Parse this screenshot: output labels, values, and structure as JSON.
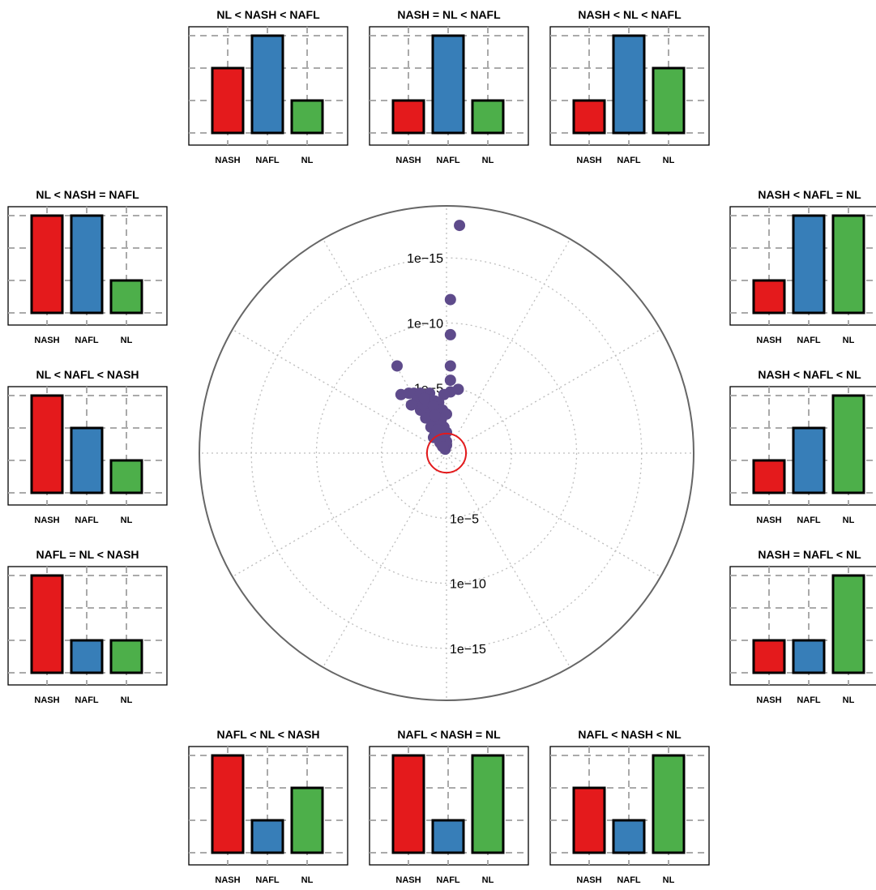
{
  "colors": {
    "NASH": "#e41a1c",
    "NAFL": "#377eb8",
    "NL": "#4daf4a",
    "point": "#5e4b8b",
    "center_circle": "#e31a1c",
    "grid": "#bdbdbd",
    "outer_circle": "#666666"
  },
  "chart_data": [
    {
      "type": "scatter",
      "projection": "polar",
      "description_of_axes": "radial distance = -log10(p), angle = direction toward ordering pattern",
      "radial_tick_labels_upper": [
        "1e−5",
        "1e−10",
        "1e−15"
      ],
      "radial_tick_labels_lower": [
        "1e−5",
        "1e−10",
        "1e−15"
      ],
      "radial_ticks": [
        5,
        10,
        15
      ],
      "rlim": [
        0,
        19
      ],
      "significance_circle_radius": 1.5,
      "angular_divisions": 12,
      "points": [
        {
          "x": 1.0,
          "y": 17.5
        },
        {
          "x": 0.3,
          "y": 11.8
        },
        {
          "x": 0.3,
          "y": 9.1
        },
        {
          "x": 0.3,
          "y": 6.7
        },
        {
          "x": 0.3,
          "y": 5.6
        },
        {
          "x": 0.9,
          "y": 4.9
        },
        {
          "x": 0.3,
          "y": 4.7
        },
        {
          "x": -0.2,
          "y": 4.5
        },
        {
          "x": -1.3,
          "y": 4.6
        },
        {
          "x": -1.2,
          "y": 4.1
        },
        {
          "x": -0.9,
          "y": 4.0
        },
        {
          "x": -0.6,
          "y": 3.9
        },
        {
          "x": -1.5,
          "y": 3.6
        },
        {
          "x": -0.8,
          "y": 3.4
        },
        {
          "x": -1.4,
          "y": 3.2
        },
        {
          "x": -0.3,
          "y": 3.3
        },
        {
          "x": 0.0,
          "y": 3.0
        },
        {
          "x": -0.4,
          "y": 2.6
        },
        {
          "x": -1.1,
          "y": 2.3
        },
        {
          "x": -0.7,
          "y": 2.1
        },
        {
          "x": -0.2,
          "y": 2.0
        },
        {
          "x": 0.0,
          "y": 1.6
        },
        {
          "x": -0.9,
          "y": 1.4
        },
        {
          "x": -0.5,
          "y": 1.3
        },
        {
          "x": -0.3,
          "y": 1.1
        },
        {
          "x": -0.2,
          "y": 0.6
        },
        {
          "x": -0.1,
          "y": 0.3
        },
        {
          "x": 0.0,
          "y": 0.9
        },
        {
          "x": -0.1,
          "y": 0.8
        },
        {
          "x": 0.0,
          "y": 0.6
        },
        {
          "x": -3.8,
          "y": 6.7
        },
        {
          "x": -3.5,
          "y": 4.5
        },
        {
          "x": -2.9,
          "y": 4.6
        },
        {
          "x": -2.5,
          "y": 4.6
        },
        {
          "x": -2.0,
          "y": 4.6
        },
        {
          "x": -2.3,
          "y": 4.0
        },
        {
          "x": -2.0,
          "y": 3.3
        },
        {
          "x": -1.8,
          "y": 3.7
        },
        {
          "x": -2.7,
          "y": 3.7
        },
        {
          "x": -1.6,
          "y": 2.7
        },
        {
          "x": -1.0,
          "y": 3.6
        },
        {
          "x": -1.7,
          "y": 4.2
        },
        {
          "x": -0.6,
          "y": 2.1
        },
        {
          "x": -0.9,
          "y": 2.9
        },
        {
          "x": -1.2,
          "y": 2.0
        },
        {
          "x": -1.0,
          "y": 1.2
        },
        {
          "x": -0.4,
          "y": 1.7
        },
        {
          "x": -0.5,
          "y": 0.8
        },
        {
          "x": -0.3,
          "y": 0.5
        },
        {
          "x": -0.7,
          "y": 1.8
        }
      ]
    },
    {
      "type": "bar",
      "title": "NL < NASH < NAFL",
      "categories": [
        "NASH",
        "NAFL",
        "NL"
      ],
      "values": [
        2,
        3,
        1
      ],
      "ylim": [
        0,
        3
      ],
      "position": "top"
    },
    {
      "type": "bar",
      "title": "NASH = NL < NAFL",
      "categories": [
        "NASH",
        "NAFL",
        "NL"
      ],
      "values": [
        1,
        3,
        1
      ],
      "ylim": [
        0,
        3
      ],
      "position": "top"
    },
    {
      "type": "bar",
      "title": "NASH < NL < NAFL",
      "categories": [
        "NASH",
        "NAFL",
        "NL"
      ],
      "values": [
        1,
        3,
        2
      ],
      "ylim": [
        0,
        3
      ],
      "position": "top"
    },
    {
      "type": "bar",
      "title": "NL < NASH = NAFL",
      "categories": [
        "NASH",
        "NAFL",
        "NL"
      ],
      "values": [
        3,
        3,
        1
      ],
      "ylim": [
        0,
        3
      ],
      "position": "left"
    },
    {
      "type": "bar",
      "title": "NL < NAFL < NASH",
      "categories": [
        "NASH",
        "NAFL",
        "NL"
      ],
      "values": [
        3,
        2,
        1
      ],
      "ylim": [
        0,
        3
      ],
      "position": "left"
    },
    {
      "type": "bar",
      "title": "NAFL = NL < NASH",
      "categories": [
        "NASH",
        "NAFL",
        "NL"
      ],
      "values": [
        3,
        1,
        1
      ],
      "ylim": [
        0,
        3
      ],
      "position": "left"
    },
    {
      "type": "bar",
      "title": "NASH < NAFL = NL",
      "categories": [
        "NASH",
        "NAFL",
        "NL"
      ],
      "values": [
        1,
        3,
        3
      ],
      "ylim": [
        0,
        3
      ],
      "position": "right"
    },
    {
      "type": "bar",
      "title": "NASH < NAFL < NL",
      "categories": [
        "NASH",
        "NAFL",
        "NL"
      ],
      "values": [
        1,
        2,
        3
      ],
      "ylim": [
        0,
        3
      ],
      "position": "right"
    },
    {
      "type": "bar",
      "title": "NASH = NAFL < NL",
      "categories": [
        "NASH",
        "NAFL",
        "NL"
      ],
      "values": [
        1,
        1,
        3
      ],
      "ylim": [
        0,
        3
      ],
      "position": "right"
    },
    {
      "type": "bar",
      "title": "NAFL < NL < NASH",
      "categories": [
        "NASH",
        "NAFL",
        "NL"
      ],
      "values": [
        3,
        1,
        2
      ],
      "ylim": [
        0,
        3
      ],
      "position": "bottom"
    },
    {
      "type": "bar",
      "title": "NAFL < NASH = NL",
      "categories": [
        "NASH",
        "NAFL",
        "NL"
      ],
      "values": [
        3,
        1,
        3
      ],
      "ylim": [
        0,
        3
      ],
      "position": "bottom"
    },
    {
      "type": "bar",
      "title": "NAFL < NASH < NL",
      "categories": [
        "NASH",
        "NAFL",
        "NL"
      ],
      "values": [
        2,
        1,
        3
      ],
      "ylim": [
        0,
        3
      ],
      "position": "bottom"
    }
  ]
}
